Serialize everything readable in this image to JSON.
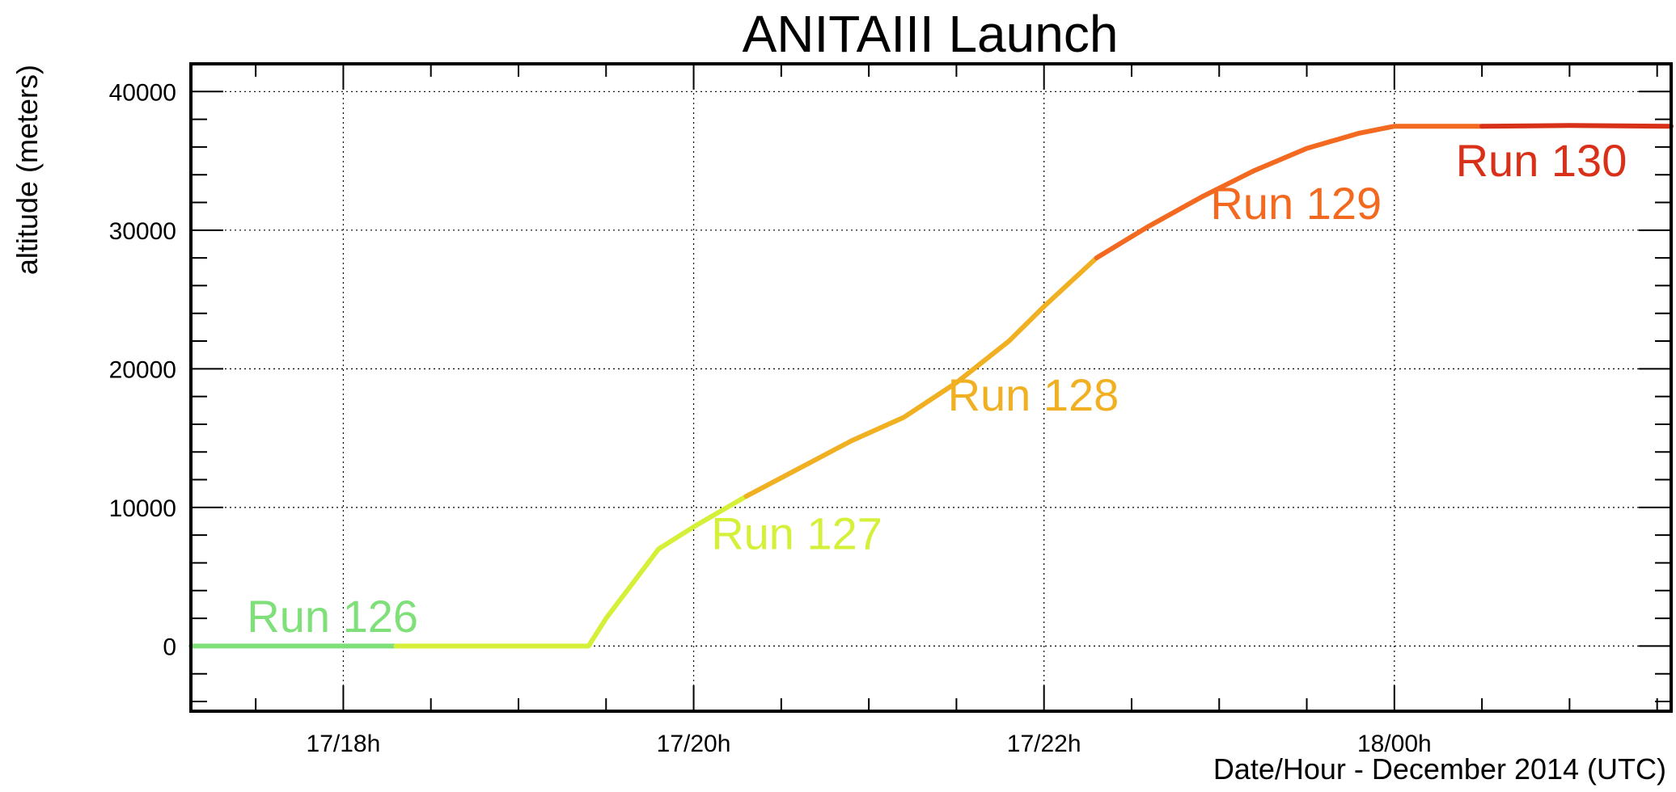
{
  "chart_data": {
    "type": "line",
    "title": "ANITAIII Launch",
    "xlabel": "Date/Hour - December 2014 (UTC)",
    "ylabel": "altitude (meters)",
    "x_unit": "hours (UTC, 17/18h = 18.0)",
    "xlim": [
      17.13,
      25.58
    ],
    "ylim": [
      -4700,
      42000
    ],
    "x_ticks": [
      {
        "value": 18,
        "label": "17/18h"
      },
      {
        "value": 20,
        "label": "17/20h"
      },
      {
        "value": 22,
        "label": "17/22h"
      },
      {
        "value": 24,
        "label": "18/00h"
      }
    ],
    "y_ticks": [
      {
        "value": 0,
        "label": "0"
      },
      {
        "value": 10000,
        "label": "10000"
      },
      {
        "value": 20000,
        "label": "20000"
      },
      {
        "value": 30000,
        "label": "30000"
      },
      {
        "value": 40000,
        "label": "40000"
      }
    ],
    "grid": true,
    "series": [
      {
        "name": "Run 126",
        "color": "#7fe07a",
        "points": [
          [
            17.13,
            0
          ],
          [
            18.3,
            0
          ]
        ]
      },
      {
        "name": "Run 127",
        "color": "#d6f03a",
        "points": [
          [
            18.3,
            0
          ],
          [
            19.4,
            0
          ],
          [
            19.5,
            2000
          ],
          [
            19.65,
            4500
          ],
          [
            19.8,
            7000
          ],
          [
            20.0,
            8600
          ],
          [
            20.15,
            9700
          ],
          [
            20.3,
            10800
          ]
        ]
      },
      {
        "name": "Run 128",
        "color": "#f0b022",
        "points": [
          [
            20.3,
            10800
          ],
          [
            20.6,
            12800
          ],
          [
            20.9,
            14800
          ],
          [
            21.2,
            16500
          ],
          [
            21.5,
            19000
          ],
          [
            21.8,
            22000
          ],
          [
            22.0,
            24500
          ],
          [
            22.3,
            28000
          ]
        ]
      },
      {
        "name": "Run 129",
        "color": "#f2691f",
        "points": [
          [
            22.3,
            28000
          ],
          [
            22.6,
            30300
          ],
          [
            22.9,
            32400
          ],
          [
            23.2,
            34300
          ],
          [
            23.5,
            35900
          ],
          [
            23.8,
            37000
          ],
          [
            24.0,
            37500
          ],
          [
            24.3,
            37500
          ],
          [
            24.5,
            37500
          ]
        ]
      },
      {
        "name": "Run 130",
        "color": "#d9301a",
        "points": [
          [
            24.5,
            37500
          ],
          [
            25.0,
            37550
          ],
          [
            25.58,
            37500
          ]
        ]
      }
    ],
    "annotations": [
      {
        "text": "Run 126",
        "x": 17.45,
        "y": 1000,
        "color": "#7fe07a"
      },
      {
        "text": "Run 127",
        "x": 20.1,
        "y": 7000,
        "color": "#d6f03a"
      },
      {
        "text": "Run 128",
        "x": 21.45,
        "y": 17000,
        "color": "#f0b022"
      },
      {
        "text": "Run 129",
        "x": 22.95,
        "y": 30800,
        "color": "#f2691f"
      },
      {
        "text": "Run 130",
        "x": 24.35,
        "y": 33900,
        "color": "#d9301a"
      }
    ]
  }
}
